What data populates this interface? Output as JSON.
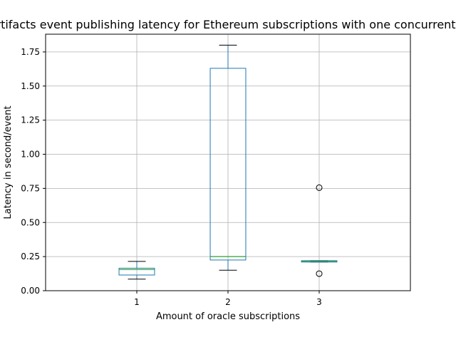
{
  "chart_data": {
    "type": "box",
    "title": "Oracle artifacts event publishing latency for Ethereum subscriptions with one concurrent instance",
    "xlabel": "Amount of oracle subscriptions",
    "ylabel": "Latency in second/event",
    "ylim": [
      0,
      1.88
    ],
    "yticks": [
      "0.00",
      "0.25",
      "0.50",
      "0.75",
      "1.00",
      "1.25",
      "1.50",
      "1.75"
    ],
    "grid": true,
    "categories": [
      "1",
      "2",
      "3"
    ],
    "boxes": [
      {
        "category": "1",
        "whisker_low": 0.085,
        "q1": 0.115,
        "median": 0.155,
        "q3": 0.165,
        "whisker_high": 0.215,
        "outliers": []
      },
      {
        "category": "2",
        "whisker_low": 0.15,
        "q1": 0.225,
        "median": 0.25,
        "q3": 1.63,
        "whisker_high": 1.8,
        "outliers": []
      },
      {
        "category": "3",
        "whisker_low": 0.21,
        "q1": 0.21,
        "median": 0.215,
        "q3": 0.22,
        "whisker_high": 0.22,
        "outliers": [
          0.755,
          0.125
        ]
      }
    ],
    "colors": {
      "box": "#1f77b4",
      "median": "#2ca02c",
      "whisker_cap": "#000000",
      "grid": "#b0b0b0"
    }
  }
}
